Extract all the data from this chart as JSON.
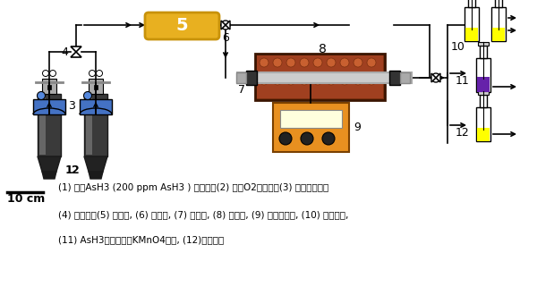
{
  "background": "#ffffff",
  "legend_lines": [
    "(1) 带有AsH3 (200 ppm AsH3 ) 的气缸，(2) 带有O2的气缸，(3) 质量流量计，",
    "(4) 三通阀，(5) 混合器, (6) 三通阀, (7) 加热炉, (8) 吸附剂, (9) 温度控制器, (10) 入口测点,",
    "(11) AsH3尾气吸附用KMnO4溶液, (12)出口测量"
  ],
  "colors": {
    "black": "#000000",
    "gray": "#888888",
    "dark_gray": "#333333",
    "mid_gray": "#aaaaaa",
    "light_gray": "#cccccc",
    "blue": "#4472C4",
    "blue2": "#5588DD",
    "gold": "#C8920A",
    "gold2": "#E8B020",
    "brown": "#7B3010",
    "brown2": "#A04020",
    "orange": "#E89020",
    "yellow": "#FFFF00",
    "purple": "#6622AA",
    "white": "#ffffff",
    "bottle_outline": "#555555"
  }
}
